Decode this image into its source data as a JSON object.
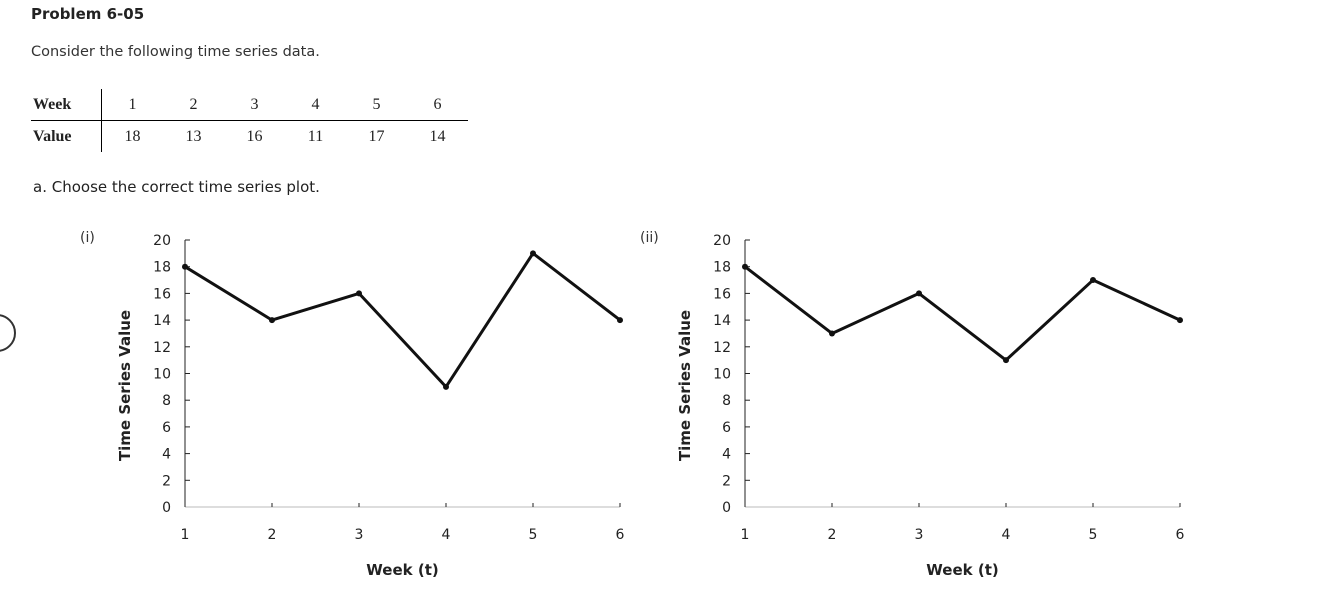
{
  "problem_title": "Problem 6-05",
  "intro": "Consider the following time series data.",
  "table": {
    "week_label": "Week",
    "value_label": "Value",
    "weeks": [
      "1",
      "2",
      "3",
      "4",
      "5",
      "6"
    ],
    "values": [
      "18",
      "13",
      "16",
      "11",
      "17",
      "14"
    ]
  },
  "question": "a. Choose the correct time series plot.",
  "option_labels": [
    "(i)",
    "(ii)"
  ],
  "chart_data": [
    {
      "type": "line",
      "option": "(i)",
      "xlabel": "Week (t)",
      "ylabel": "Time Series Value",
      "x": [
        1,
        2,
        3,
        4,
        5,
        6
      ],
      "values": [
        18,
        14,
        16,
        9,
        19,
        14
      ],
      "ylim": [
        0,
        20
      ],
      "yticks": [
        0,
        2,
        4,
        6,
        8,
        10,
        12,
        14,
        16,
        18,
        20
      ],
      "xticks": [
        1,
        2,
        3,
        4,
        5,
        6
      ],
      "grid": false
    },
    {
      "type": "line",
      "option": "(ii)",
      "xlabel": "Week (t)",
      "ylabel": "Time Series Value",
      "x": [
        1,
        2,
        3,
        4,
        5,
        6
      ],
      "values": [
        18,
        13,
        16,
        11,
        17,
        14
      ],
      "ylim": [
        0,
        20
      ],
      "yticks": [
        0,
        2,
        4,
        6,
        8,
        10,
        12,
        14,
        16,
        18,
        20
      ],
      "xticks": [
        1,
        2,
        3,
        4,
        5,
        6
      ],
      "grid": false
    }
  ]
}
